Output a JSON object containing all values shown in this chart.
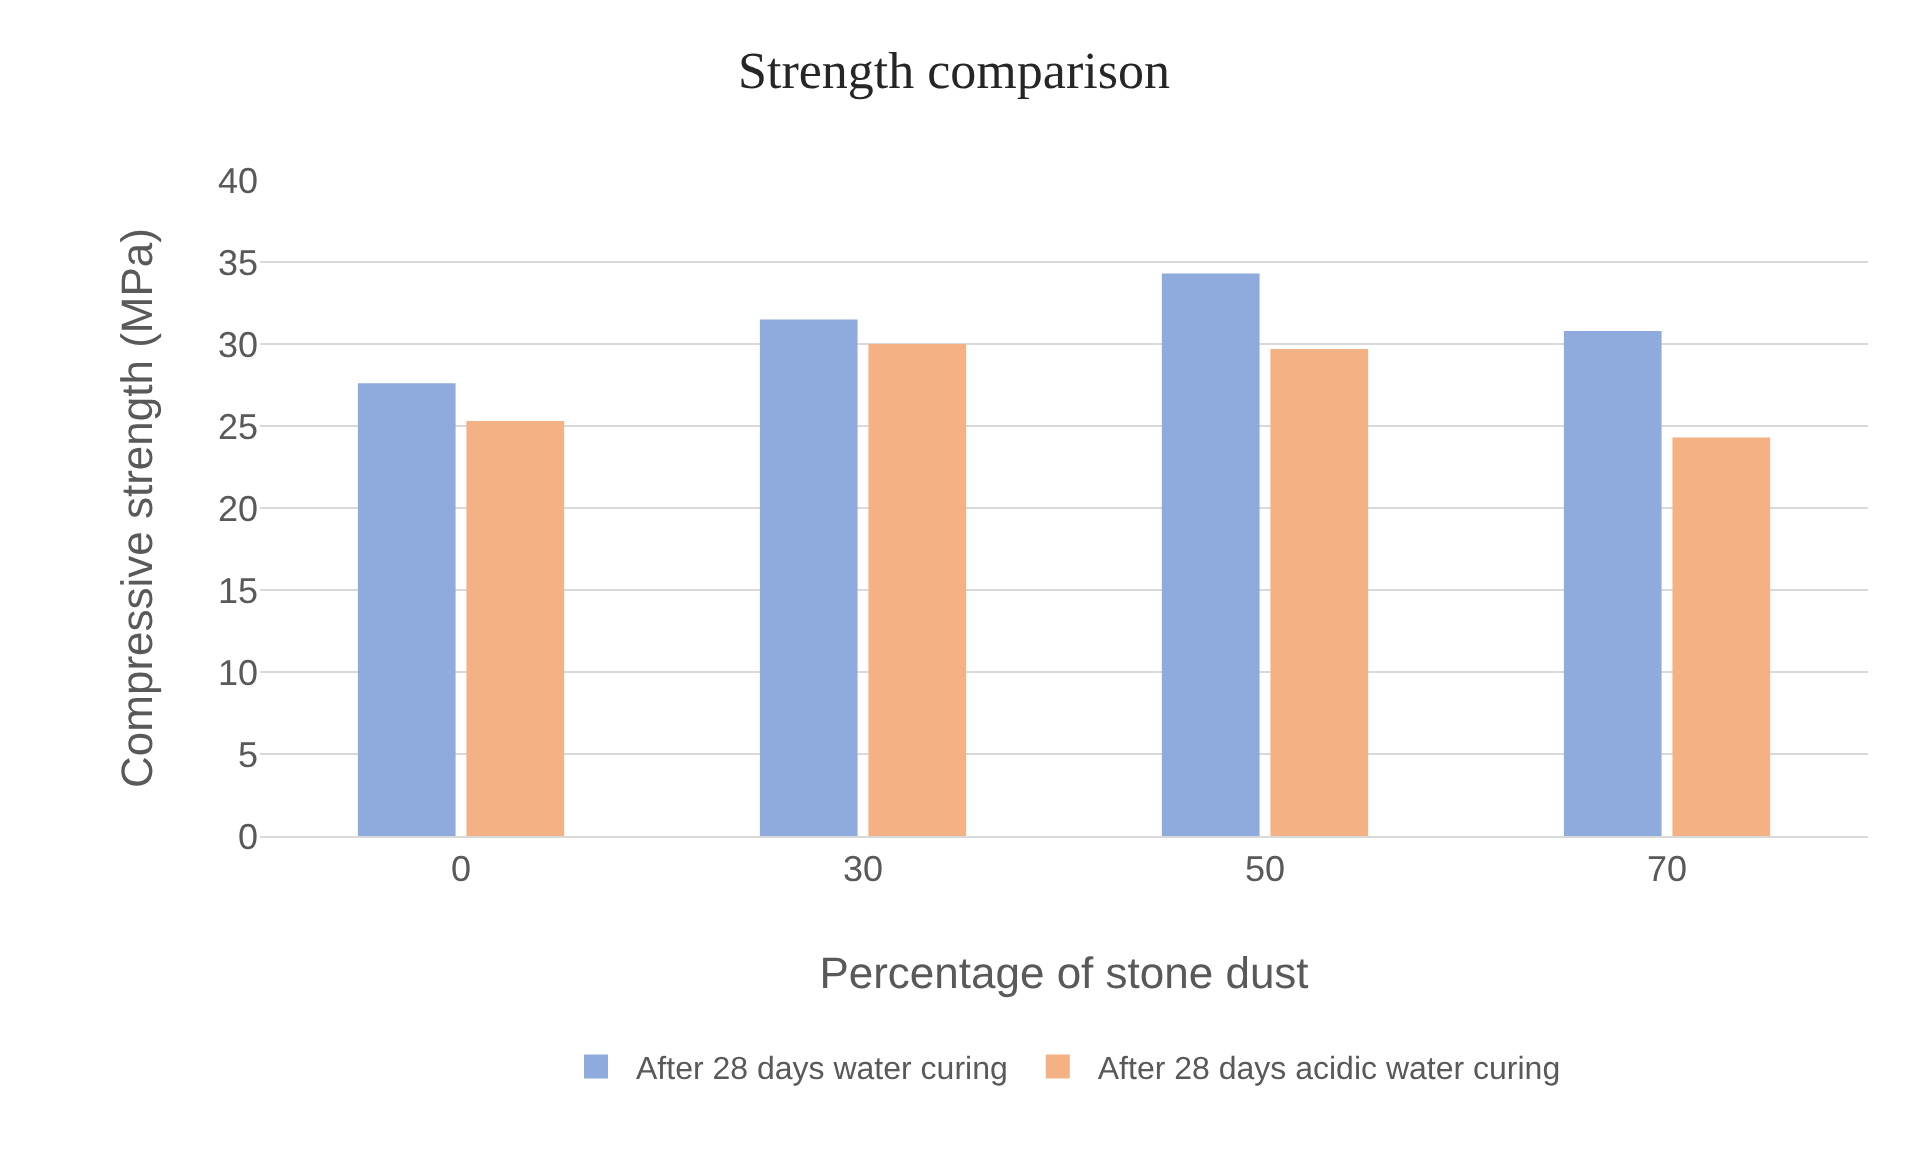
{
  "chart_data": {
    "type": "bar",
    "title": "Strength comparison",
    "xlabel": "Percentage of stone dust",
    "ylabel": "Compressive strength (MPa)",
    "categories": [
      "0",
      "30",
      "50",
      "70"
    ],
    "series": [
      {
        "name": "After 28 days water curing",
        "color": "#8faadc",
        "values": [
          27.6,
          31.5,
          34.3,
          30.8
        ]
      },
      {
        "name": "After 28 days acidic water curing",
        "color": "#f4b183",
        "values": [
          25.3,
          30.0,
          29.7,
          24.3
        ]
      }
    ],
    "ylim": [
      0,
      40
    ],
    "yticks": [
      0,
      5,
      10,
      15,
      20,
      25,
      30,
      35,
      40
    ],
    "grid": "y",
    "legend": "bottom"
  }
}
